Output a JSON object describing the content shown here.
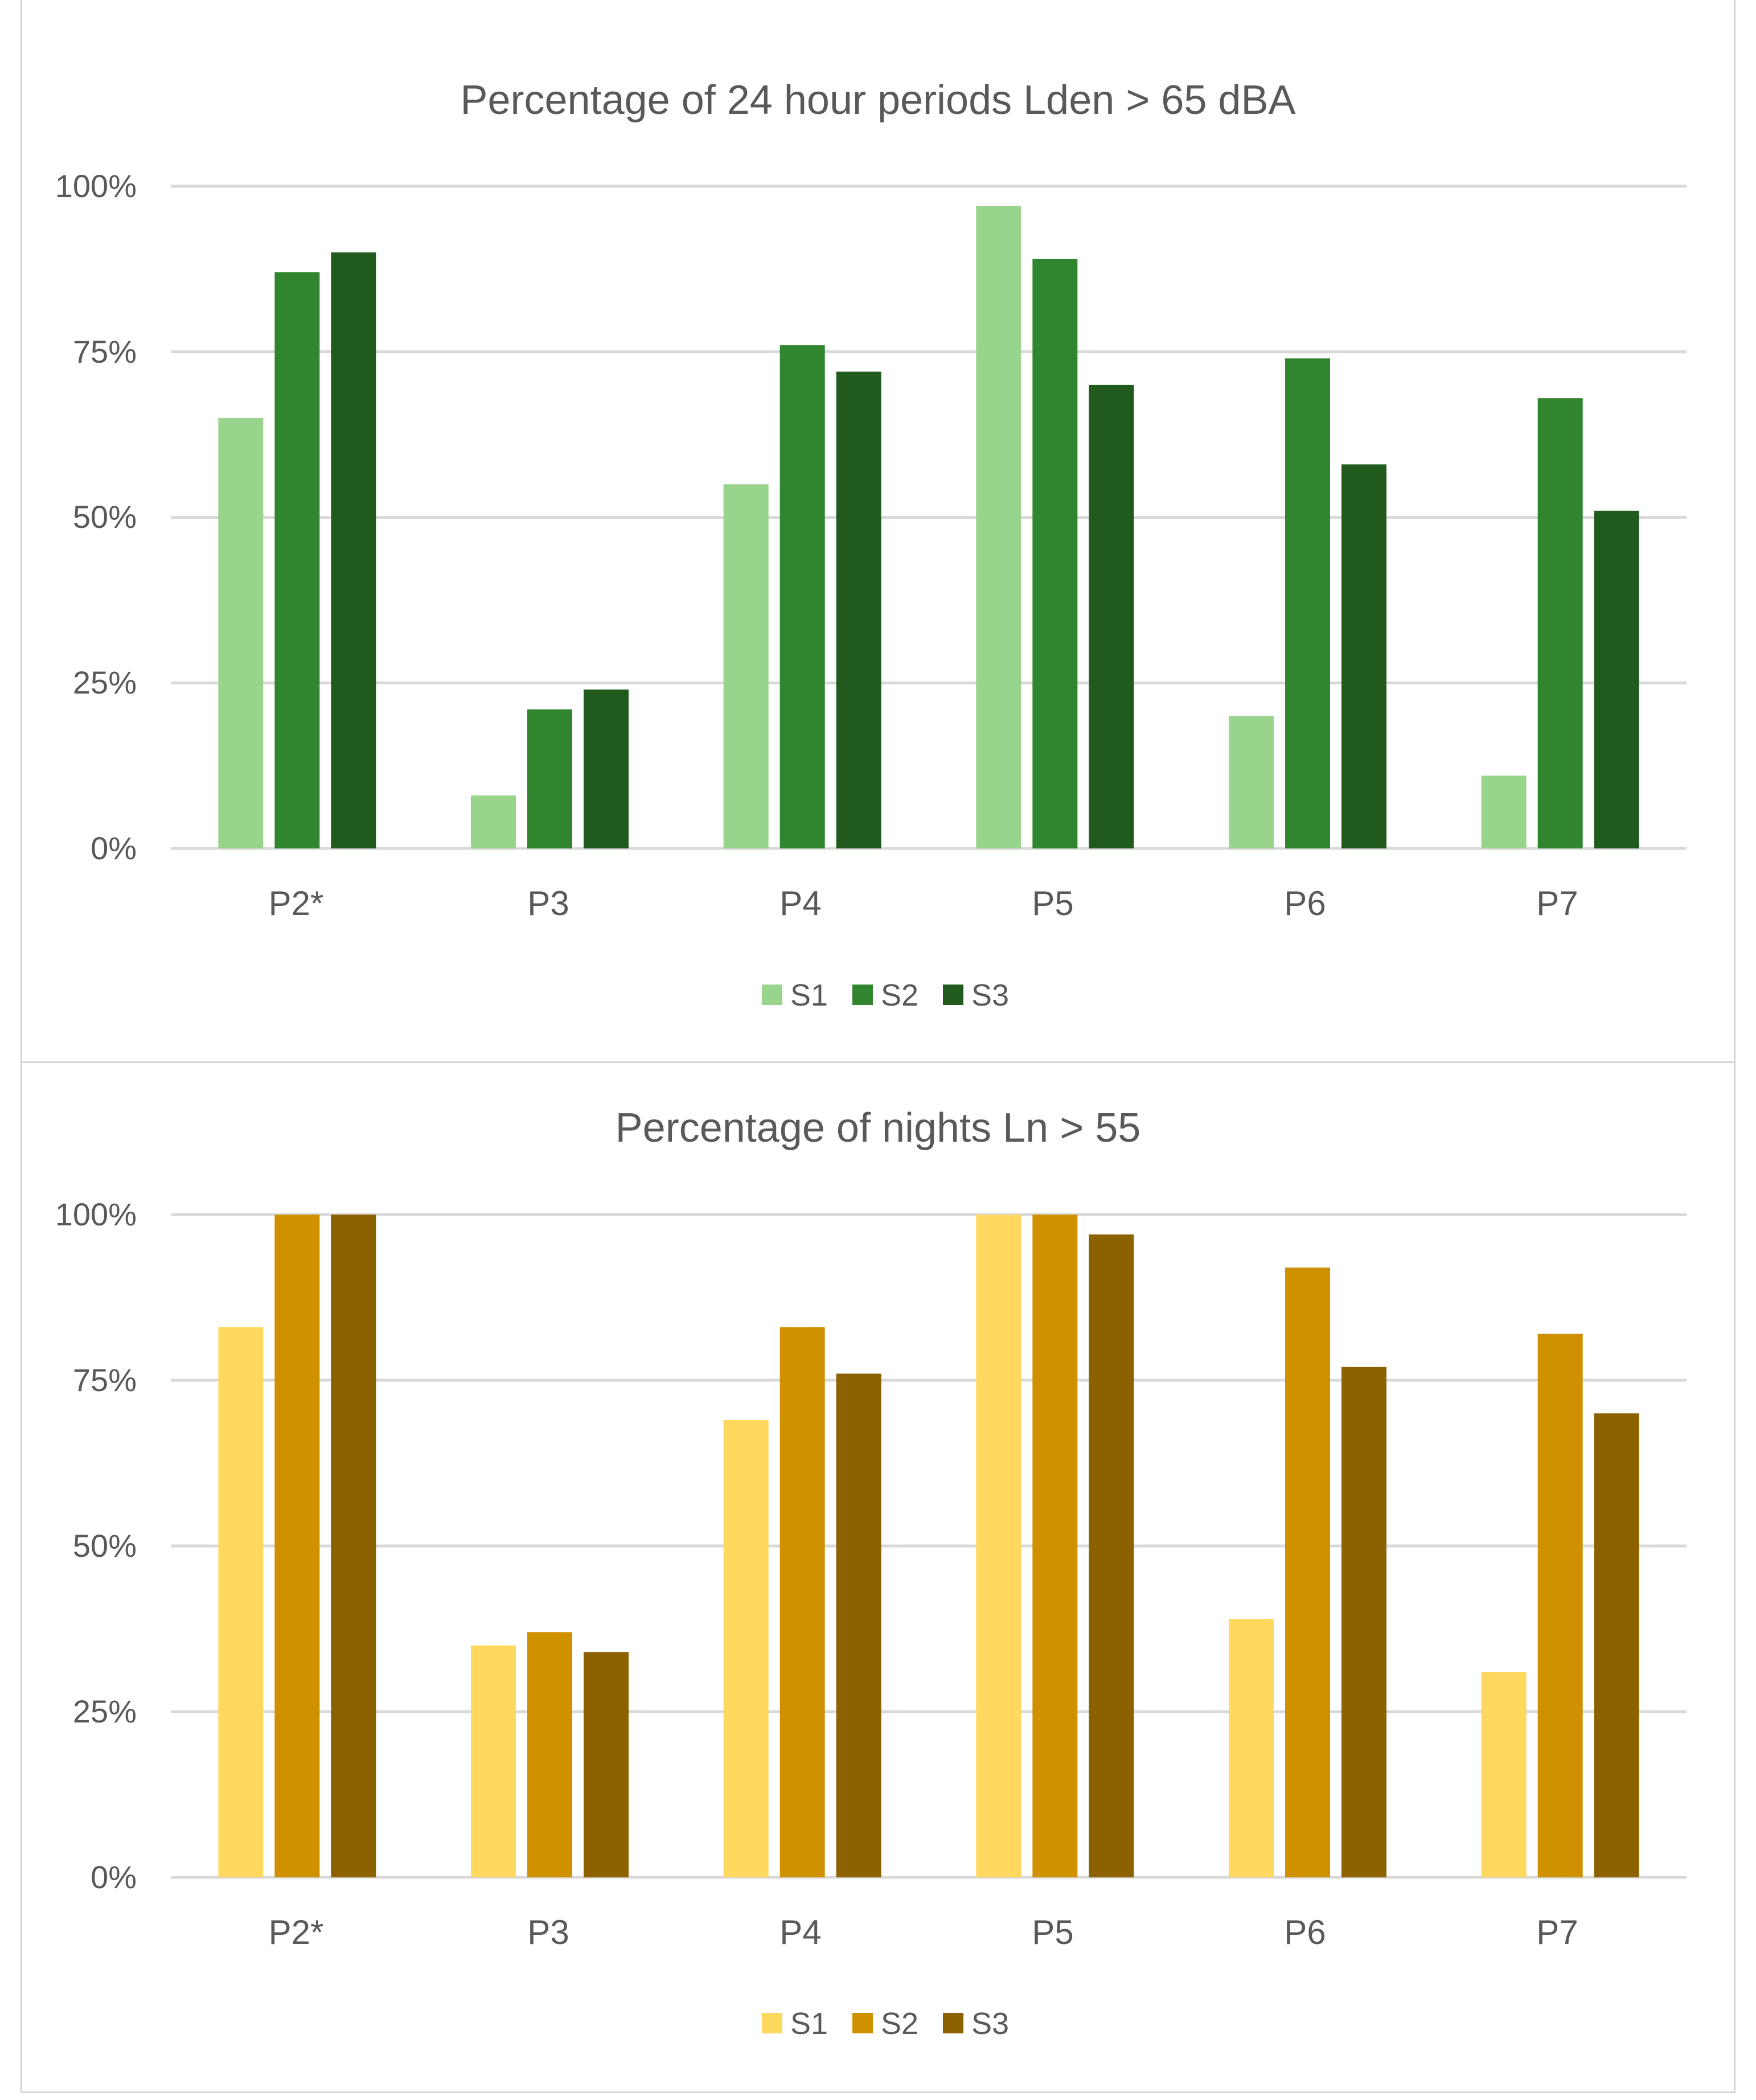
{
  "chart_data": [
    {
      "type": "bar",
      "title": "Percentage of 24 hour periods Lden > 65 dBA",
      "categories": [
        "P2*",
        "P3",
        "P4",
        "P5",
        "P6",
        "P7"
      ],
      "series": [
        {
          "name": "S1",
          "color": "#98d48b",
          "values": [
            65,
            8,
            55,
            97,
            20,
            11
          ]
        },
        {
          "name": "S2",
          "color": "#31852f",
          "values": [
            87,
            21,
            76,
            89,
            74,
            68
          ]
        },
        {
          "name": "S3",
          "color": "#215a1d",
          "values": [
            90,
            24,
            72,
            70,
            58,
            51
          ]
        }
      ],
      "yticks": [
        "0%",
        "25%",
        "50%",
        "75%",
        "100%"
      ],
      "ylim": [
        0,
        100
      ],
      "xlabel": "",
      "ylabel": "",
      "grid": true,
      "legend": "bottom-center"
    },
    {
      "type": "bar",
      "title": "Percentage of nights Ln > 55",
      "categories": [
        "P2*",
        "P3",
        "P4",
        "P5",
        "P6",
        "P7"
      ],
      "series": [
        {
          "name": "S1",
          "color": "#ffd85f",
          "values": [
            83,
            35,
            69,
            100,
            39,
            31
          ]
        },
        {
          "name": "S2",
          "color": "#cf9100",
          "values": [
            100,
            37,
            83,
            100,
            92,
            82
          ]
        },
        {
          "name": "S3",
          "color": "#8c6100",
          "values": [
            100,
            34,
            76,
            97,
            77,
            70
          ]
        }
      ],
      "yticks": [
        "0%",
        "25%",
        "50%",
        "75%",
        "100%"
      ],
      "ylim": [
        0,
        100
      ],
      "xlabel": "",
      "ylabel": "",
      "grid": true,
      "legend": "bottom-center"
    }
  ]
}
